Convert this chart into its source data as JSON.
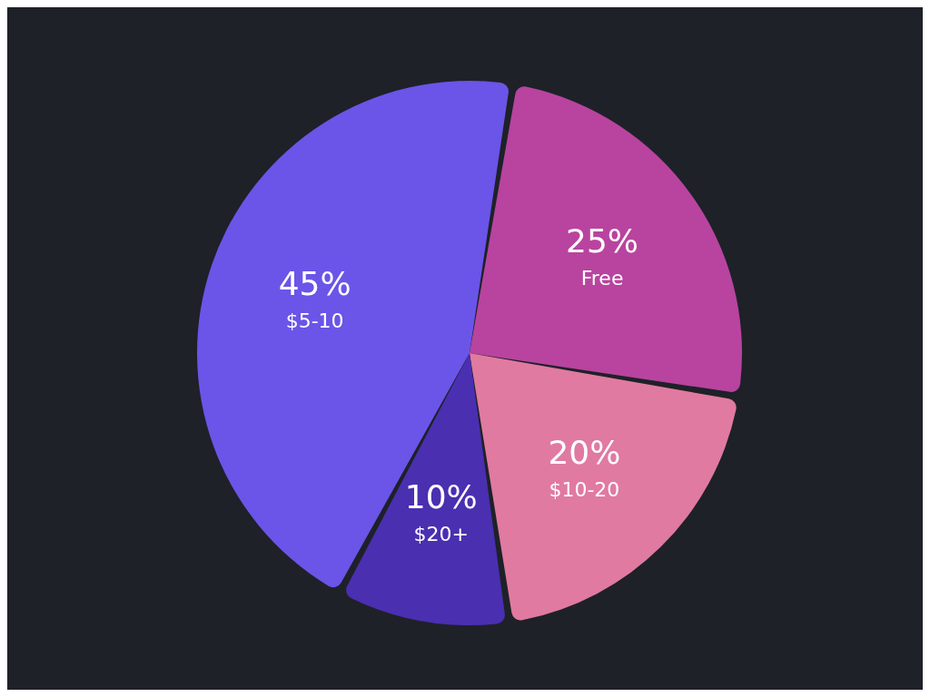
{
  "chart_data": {
    "type": "pie",
    "categories": [
      "Free",
      "$10-20",
      "$20+",
      "$5-10"
    ],
    "values": [
      25,
      20,
      10,
      45
    ],
    "value_labels": [
      "25%",
      "20%",
      "10%",
      "45%"
    ],
    "colors": [
      "#b8449f",
      "#e07aa0",
      "#4a2fb0",
      "#6a55e8"
    ]
  }
}
